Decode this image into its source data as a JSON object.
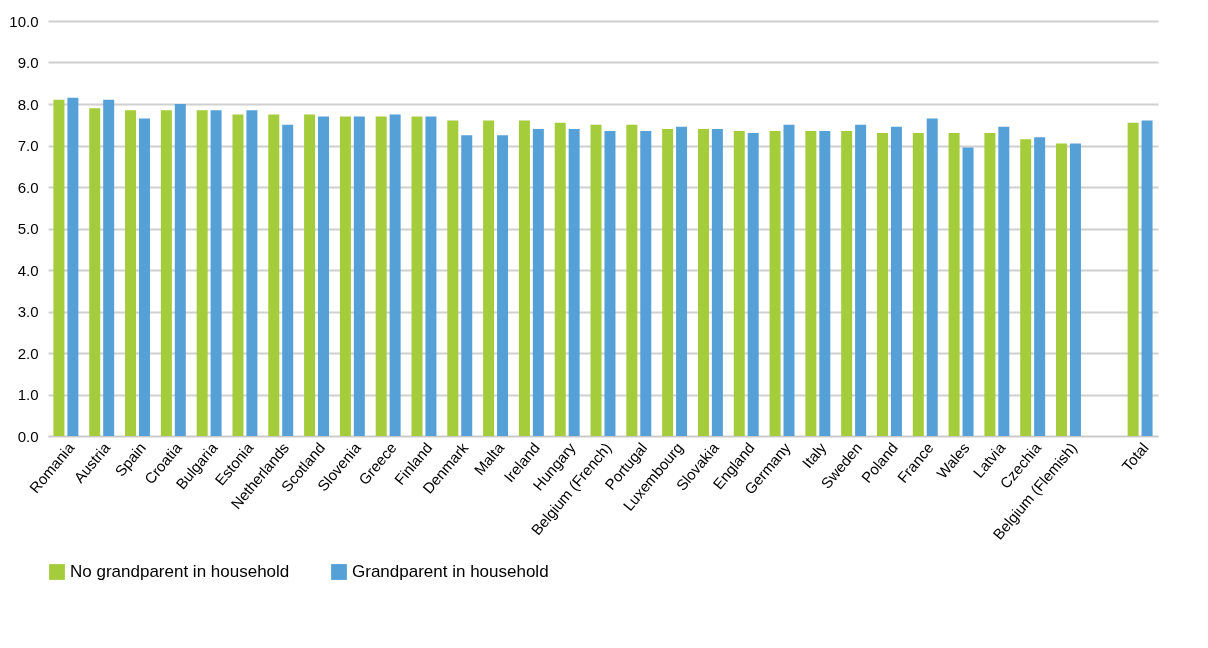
{
  "chart_data": {
    "type": "bar",
    "categories": [
      "Romania",
      "Austria",
      "Spain",
      "Croatia",
      "Bulgaria",
      "Estonia",
      "Netherlands",
      "Scotland",
      "Slovenia",
      "Greece",
      "Finland",
      "Denmark",
      "Malta",
      "Ireland",
      "Hungary",
      "Belgium (French)",
      "Portugal",
      "Luxembourg",
      "Slovakia",
      "England",
      "Germany",
      "Italy",
      "Sweden",
      "Poland",
      "France",
      "Wales",
      "Latvia",
      "Czechia",
      "Belgium (Flemish)",
      null,
      "Total"
    ],
    "series": [
      {
        "name": "No grandparent in household",
        "color": "#a5cc3a",
        "values": [
          8.1,
          7.9,
          7.85,
          7.85,
          7.85,
          7.75,
          7.75,
          7.75,
          7.7,
          7.7,
          7.7,
          7.6,
          7.6,
          7.6,
          7.55,
          7.5,
          7.5,
          7.4,
          7.4,
          7.35,
          7.35,
          7.35,
          7.35,
          7.3,
          7.3,
          7.3,
          7.3,
          7.15,
          7.05,
          null,
          7.55
        ]
      },
      {
        "name": "Grandparent in household",
        "color": "#56a0d8",
        "values": [
          8.15,
          8.1,
          7.65,
          8.0,
          7.85,
          7.85,
          7.5,
          7.7,
          7.7,
          7.75,
          7.7,
          7.25,
          7.25,
          7.4,
          7.4,
          7.35,
          7.35,
          7.45,
          7.4,
          7.3,
          7.5,
          7.35,
          7.5,
          7.45,
          7.65,
          6.95,
          7.45,
          7.2,
          7.05,
          null,
          7.6
        ]
      }
    ],
    "ylim": [
      0,
      10
    ],
    "yticks": [
      {
        "value": 0,
        "label": "0.0"
      },
      {
        "value": 1,
        "label": "1.0"
      },
      {
        "value": 2,
        "label": "2.0"
      },
      {
        "value": 3,
        "label": "3.0"
      },
      {
        "value": 4,
        "label": "4.0"
      },
      {
        "value": 5,
        "label": "5.0"
      },
      {
        "value": 6,
        "label": "6.0"
      },
      {
        "value": 7,
        "label": "7.0"
      },
      {
        "value": 8,
        "label": "8.0"
      },
      {
        "value": 9,
        "label": "9.0"
      },
      {
        "value": 10,
        "label": "10.0"
      }
    ],
    "grid": "y",
    "legend": "bottom"
  }
}
